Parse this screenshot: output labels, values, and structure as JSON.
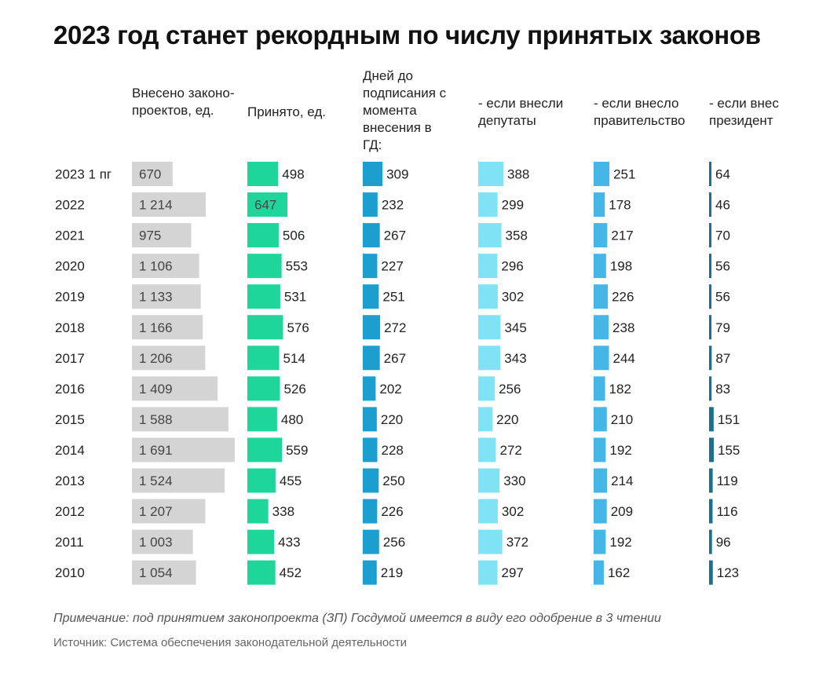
{
  "title": "2023 год станет рекордным по числу принятых законов",
  "chart_data": {
    "type": "bar",
    "categories": [
      "2023 1 пг",
      "2022",
      "2021",
      "2020",
      "2019",
      "2018",
      "2017",
      "2016",
      "2015",
      "2014",
      "2013",
      "2012",
      "2011",
      "2010"
    ],
    "series": [
      {
        "name": "Внесено законо-\nпроектов, ед.",
        "color": "#d4d4d4",
        "labels": [
          "670",
          "1 214",
          "975",
          "1 106",
          "1 133",
          "1 166",
          "1 206",
          "1 409",
          "1 588",
          "1 691",
          "1 524",
          "1 207",
          "1 003",
          "1 054"
        ],
        "values": [
          670,
          1214,
          975,
          1106,
          1133,
          1166,
          1206,
          1409,
          1588,
          1691,
          1524,
          1207,
          1003,
          1054
        ]
      },
      {
        "name": "Принято, ед.",
        "color": "#1fd69a",
        "labels": [
          "498",
          "647",
          "506",
          "553",
          "531",
          "576",
          "514",
          "526",
          "480",
          "559",
          "455",
          "338",
          "433",
          "452"
        ],
        "values": [
          498,
          647,
          506,
          553,
          531,
          576,
          514,
          526,
          480,
          559,
          455,
          338,
          433,
          452
        ]
      },
      {
        "name": "Дней до\nподписания с\nмомента\nвнесения в\nГД:",
        "color": "#1c9fcf",
        "labels": [
          "309",
          "232",
          "267",
          "227",
          "251",
          "272",
          "267",
          "202",
          "220",
          "228",
          "250",
          "226",
          "256",
          "219"
        ],
        "values": [
          309,
          232,
          267,
          227,
          251,
          272,
          267,
          202,
          220,
          228,
          250,
          226,
          256,
          219
        ]
      },
      {
        "name": "- если внесли\nдепутаты",
        "color": "#7fe3f5",
        "labels": [
          "388",
          "299",
          "358",
          "296",
          "302",
          "345",
          "343",
          "256",
          "220",
          "272",
          "330",
          "302",
          "372",
          "297"
        ],
        "values": [
          388,
          299,
          358,
          296,
          302,
          345,
          343,
          256,
          220,
          272,
          330,
          302,
          372,
          297
        ]
      },
      {
        "name": "- если внесло\nправительство",
        "color": "#46b6e6",
        "labels": [
          "251",
          "178",
          "217",
          "198",
          "226",
          "238",
          "244",
          "182",
          "210",
          "192",
          "214",
          "209",
          "192",
          "162"
        ],
        "values": [
          251,
          178,
          217,
          198,
          226,
          238,
          244,
          182,
          210,
          192,
          214,
          209,
          192,
          162
        ]
      },
      {
        "name": "- если внес\nпрезидент",
        "color": "#1b6f8f",
        "labels": [
          "64",
          "46",
          "70",
          "56",
          "56",
          "79",
          "87",
          "83",
          "151",
          "155",
          "119",
          "116",
          "96",
          "123"
        ],
        "values": [
          64,
          46,
          70,
          56,
          56,
          79,
          87,
          83,
          151,
          155,
          119,
          116,
          96,
          123
        ]
      }
    ]
  },
  "note": "Примечание: под принятием законопроекта (ЗП) Госдумой имеется в виду его одобрение в 3 чтении",
  "source": "Источник: Система обеспечения законодательной деятельности"
}
